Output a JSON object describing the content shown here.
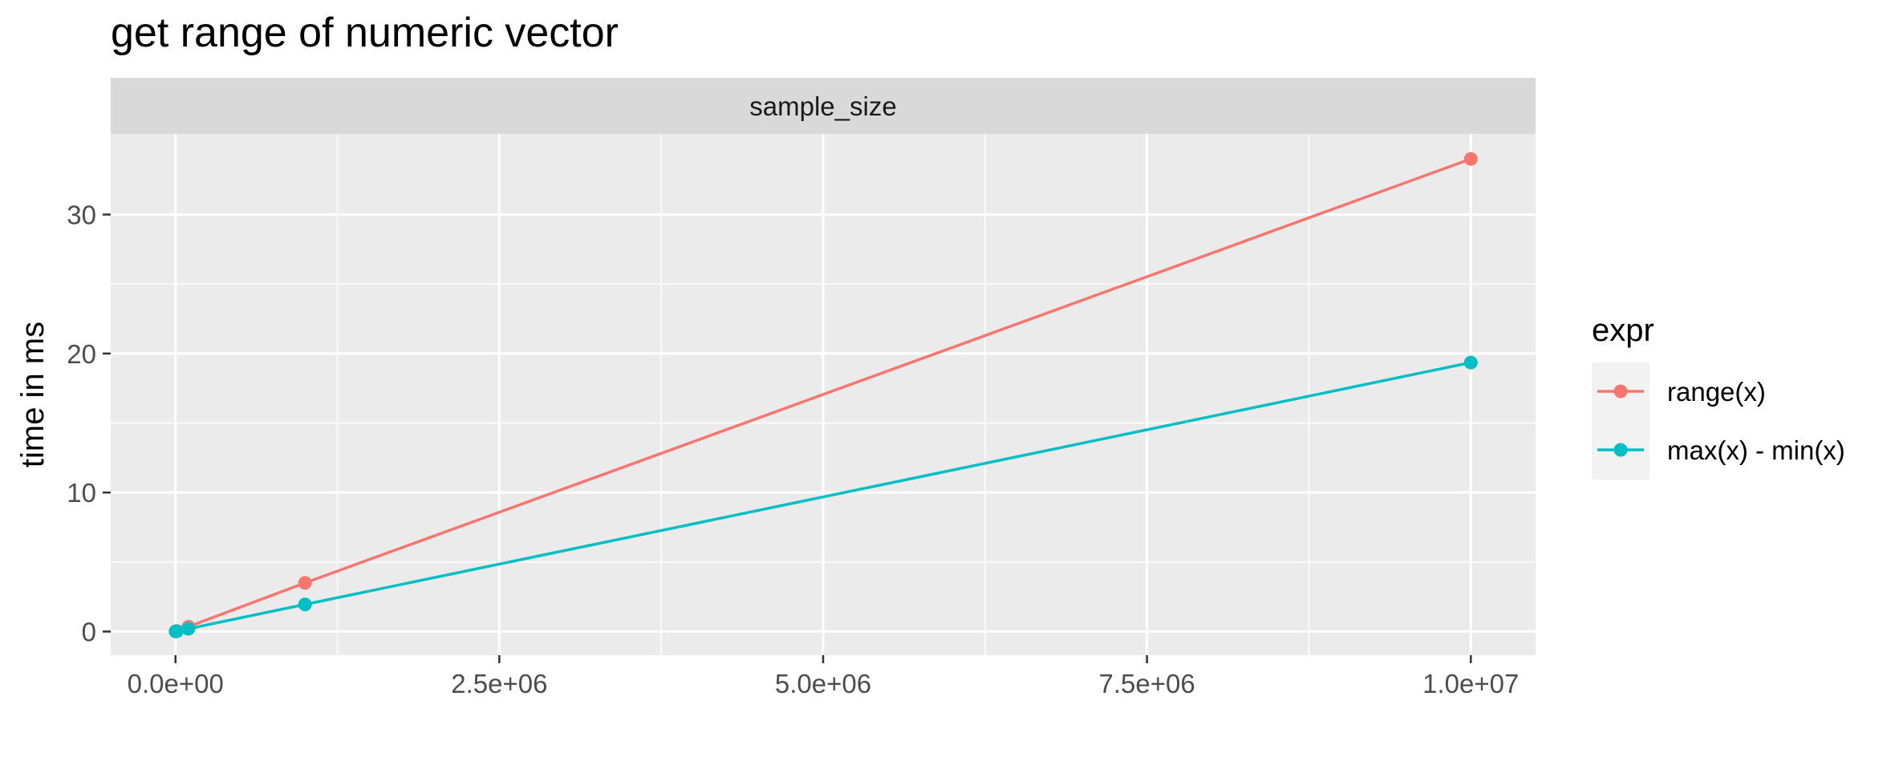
{
  "chart_data": {
    "type": "line",
    "title": "get range of numeric vector",
    "facet_strip": "sample_size",
    "xlabel": "",
    "ylabel": "time in ms",
    "x_ticks": [
      0,
      2500000,
      5000000,
      7500000,
      10000000
    ],
    "x_tick_labels": [
      "0.0e+00",
      "2.5e+06",
      "5.0e+06",
      "7.5e+06",
      "1.0e+07"
    ],
    "y_ticks": [
      0,
      10,
      20,
      30
    ],
    "y_tick_labels": [
      "0",
      "10",
      "20",
      "30"
    ],
    "xlim": [
      -500000,
      10500000
    ],
    "ylim": [
      -1.7,
      35.8
    ],
    "grid": true,
    "legend": {
      "title": "expr",
      "position": "right"
    },
    "series": [
      {
        "name": "range(x)",
        "color": "#F8766D",
        "x": [
          1000,
          10000,
          100000,
          1000000,
          10000000
        ],
        "y": [
          0.01,
          0.04,
          0.35,
          3.5,
          34.0
        ]
      },
      {
        "name": "max(x) - min(x)",
        "color": "#00BFC4",
        "x": [
          1000,
          10000,
          100000,
          1000000,
          10000000
        ],
        "y": [
          0.01,
          0.02,
          0.2,
          1.95,
          19.35
        ]
      }
    ]
  }
}
